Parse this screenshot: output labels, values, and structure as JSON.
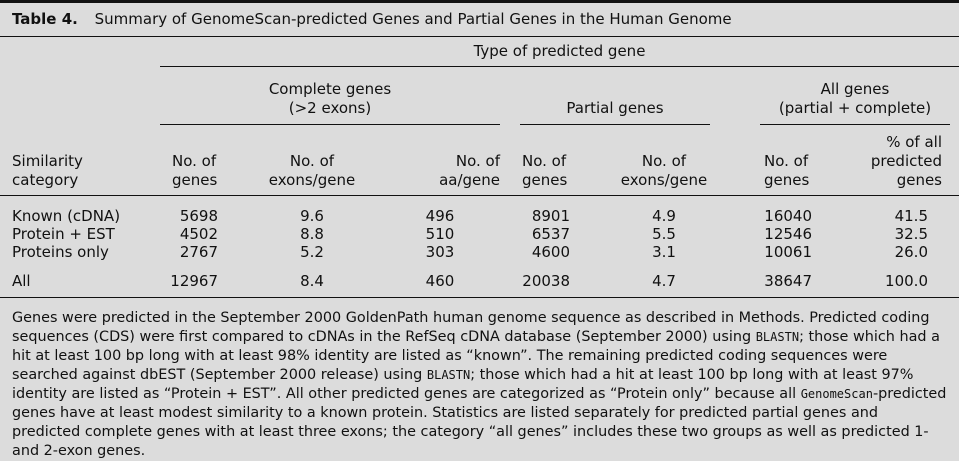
{
  "table": {
    "number": "Table 4.",
    "title": "Summary of GenomeScan-predicted Genes and Partial Genes in the Human Genome",
    "group_header": "Type of predicted gene",
    "groups": {
      "complete_line1": "Complete genes",
      "complete_line2": "(>2 exons)",
      "partial": "Partial genes",
      "all_line1": "All genes",
      "all_line2": "(partial + complete)"
    },
    "columns": {
      "similarity_line1": "Similarity",
      "similarity_line2": "category",
      "c_genes_line1": "No. of",
      "c_genes_line2": "genes",
      "c_exons_line1": "No. of",
      "c_exons_line2": "exons/gene",
      "c_aa_line1": "No. of",
      "c_aa_line2": "aa/gene",
      "p_genes_line1": "No. of",
      "p_genes_line2": "genes",
      "p_exons_line1": "No. of",
      "p_exons_line2": "exons/gene",
      "a_genes_line1": "No. of",
      "a_genes_line2": "genes",
      "a_pct_line1": "% of all",
      "a_pct_line2": "predicted",
      "a_pct_line3": "genes"
    },
    "rows": [
      {
        "category": "Known (cDNA)",
        "c_genes": "5698",
        "c_exons": "9.6",
        "c_aa": "496",
        "p_genes": "8901",
        "p_exons": "4.9",
        "a_genes": "16040",
        "a_pct": "41.5"
      },
      {
        "category": "Protein + EST",
        "c_genes": "4502",
        "c_exons": "8.8",
        "c_aa": "510",
        "p_genes": "6537",
        "p_exons": "5.5",
        "a_genes": "12546",
        "a_pct": "32.5"
      },
      {
        "category": "Proteins only",
        "c_genes": "2767",
        "c_exons": "5.2",
        "c_aa": "303",
        "p_genes": "4600",
        "p_exons": "3.1",
        "a_genes": "10061",
        "a_pct": "26.0"
      },
      {
        "category": "All",
        "c_genes": "12967",
        "c_exons": "8.4",
        "c_aa": "460",
        "p_genes": "20038",
        "p_exons": "4.7",
        "a_genes": "38647",
        "a_pct": "100.0"
      }
    ],
    "footnote": {
      "s1": "Genes were predicted in the September 2000 GoldenPath human genome sequence as described in Methods. Predicted coding sequences (CDS) were first compared to cDNAs in the RefSeq cDNA database (September 2000) using ",
      "m1": "BLASTN",
      "s2": "; those which had a hit at least 100 bp long with at least 98% identity are listed as “known”. The remaining predicted coding sequences were searched against dbEST (September 2000 release) using ",
      "m2": "BLASTN",
      "s3": "; those which had a hit at least 100 bp long with at least 97% identity are listed as “Protein + EST”. All other predicted genes are categorized as “Protein only” because all ",
      "m3": "GenomeScan",
      "s4": "-predicted genes have at least modest similarity to a known protein. Statistics are listed separately for predicted partial genes and predicted complete genes with at least three exons; the category “all genes” includes these two groups as well as predicted 1- and 2-exon genes."
    }
  }
}
